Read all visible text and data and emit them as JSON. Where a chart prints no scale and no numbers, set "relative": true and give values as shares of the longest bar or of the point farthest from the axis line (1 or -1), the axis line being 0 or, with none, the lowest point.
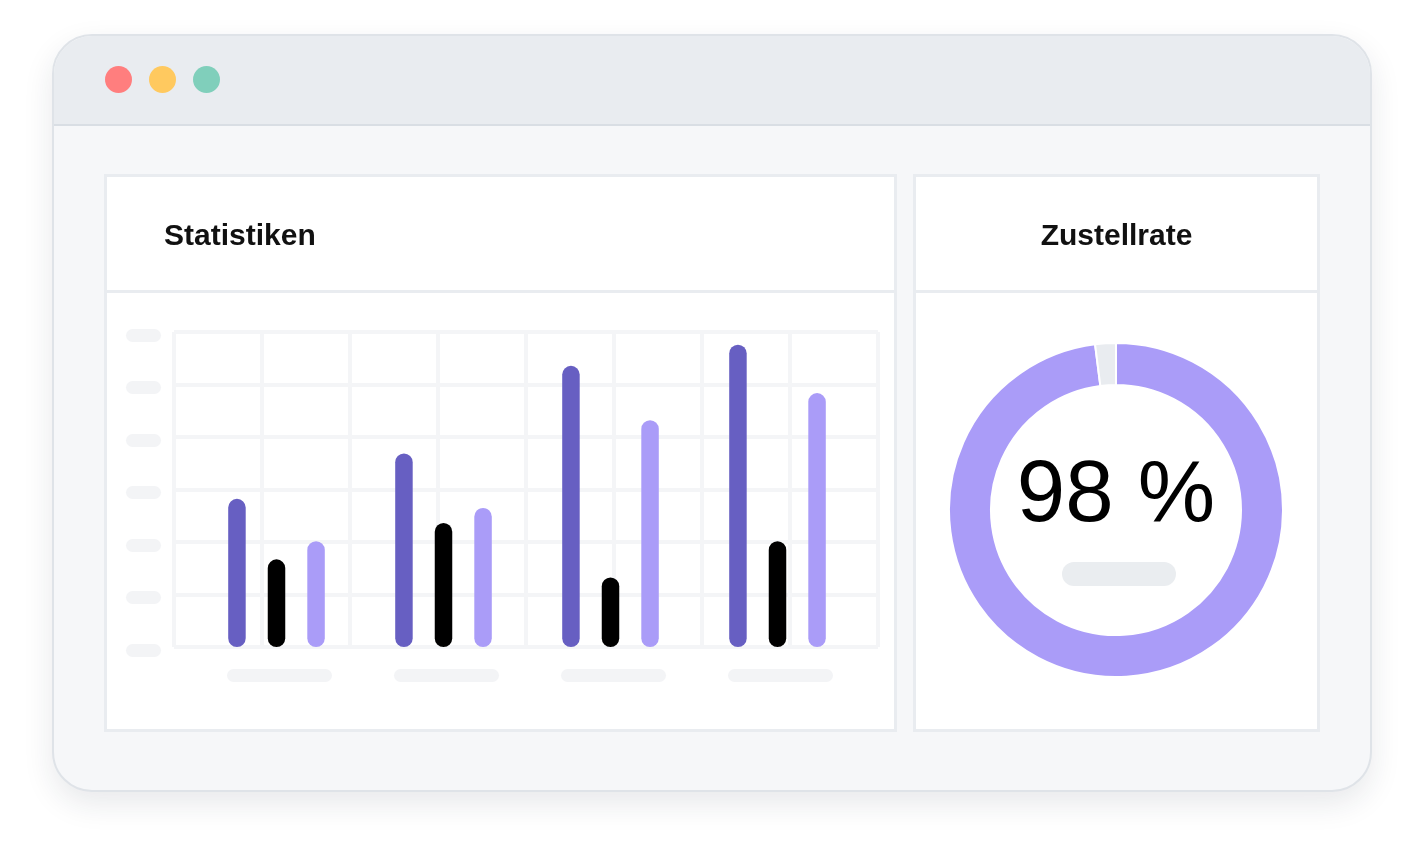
{
  "chart_data": [
    {
      "type": "bar",
      "title": "Statistiken",
      "categories": [
        null,
        null,
        null,
        null
      ],
      "relative": true,
      "grid": true,
      "series": [
        {
          "color": "#675fc2",
          "values": [
            0.49,
            0.64,
            0.93,
            1
          ]
        },
        {
          "color": "#000000",
          "values": [
            0.29,
            0.41,
            0.23,
            0.35
          ]
        },
        {
          "color": "#aa9cf8",
          "values": [
            0.35,
            0.46,
            0.75,
            0.84
          ]
        }
      ]
    },
    {
      "type": "donut",
      "title": "Zustellrate",
      "categories": [
        null,
        null
      ],
      "values": [
        98,
        2
      ],
      "colors": [
        "#aa9cf8",
        "#e9ecf0"
      ],
      "value_labels": [
        "98 %",
        null
      ]
    }
  ]
}
